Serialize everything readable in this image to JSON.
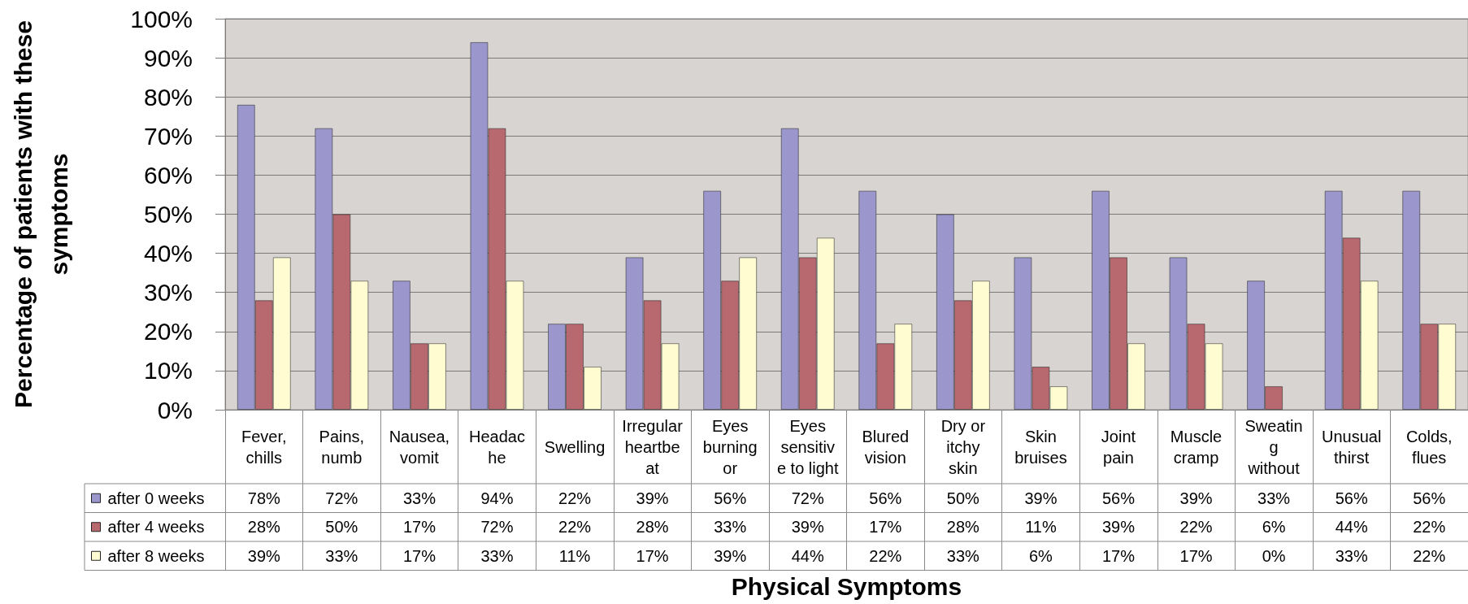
{
  "chart_data": {
    "type": "bar",
    "xlabel": "Physical Symptoms",
    "ylabel": "Percentage of patients with these symptoms",
    "categories": [
      "Fever, chills",
      "Pains, numb",
      "Nausea, vomit",
      "Headache",
      "Swelling",
      "Irregular heartbeat",
      "Eyes burning or",
      "Eyes sensitive to light",
      "Blured vision",
      "Dry or itchy skin",
      "Skin bruises",
      "Joint pain",
      "Muscle cramp",
      "Sweating without",
      "Unusual thirst",
      "Colds, flues"
    ],
    "series": [
      {
        "name": "after 0 weeks",
        "color": "#9b97cd",
        "values": [
          78,
          72,
          33,
          94,
          22,
          39,
          56,
          72,
          56,
          50,
          39,
          56,
          39,
          33,
          56,
          56
        ],
        "value_labels": [
          "78%",
          "72%",
          "33%",
          "94%",
          "22%",
          "39%",
          "56%",
          "72%",
          "56%",
          "50%",
          "39%",
          "56%",
          "39%",
          "33%",
          "56%",
          "56%"
        ]
      },
      {
        "name": "after 4 weeks",
        "color": "#b8686f",
        "values": [
          28,
          50,
          17,
          72,
          22,
          28,
          33,
          39,
          17,
          28,
          11,
          39,
          22,
          6,
          44,
          22
        ],
        "value_labels": [
          "28%",
          "50%",
          "17%",
          "72%",
          "22%",
          "28%",
          "33%",
          "39%",
          "17%",
          "28%",
          "11%",
          "39%",
          "22%",
          "6%",
          "44%",
          "22%"
        ]
      },
      {
        "name": "after 8 weeks",
        "color": "#fffcd2",
        "values": [
          39,
          33,
          17,
          33,
          11,
          17,
          39,
          44,
          22,
          33,
          6,
          17,
          17,
          0,
          33,
          22
        ],
        "value_labels": [
          "39%",
          "33%",
          "17%",
          "33%",
          "11%",
          "17%",
          "39%",
          "44%",
          "22%",
          "33%",
          "6%",
          "17%",
          "17%",
          "0%",
          "33%",
          "22%"
        ]
      }
    ],
    "ylim": [
      0,
      100
    ],
    "yticks": [
      {
        "value": 0,
        "label": "0%"
      },
      {
        "value": 10,
        "label": "10%"
      },
      {
        "value": 20,
        "label": "20%"
      },
      {
        "value": 30,
        "label": "30%"
      },
      {
        "value": 40,
        "label": "40%"
      },
      {
        "value": 50,
        "label": "50%"
      },
      {
        "value": 60,
        "label": "60%"
      },
      {
        "value": 70,
        "label": "70%"
      },
      {
        "value": 80,
        "label": "80%"
      },
      {
        "value": 90,
        "label": "90%"
      },
      {
        "value": 100,
        "label": "100%"
      }
    ],
    "grid": "y",
    "legend": "bottom left"
  }
}
